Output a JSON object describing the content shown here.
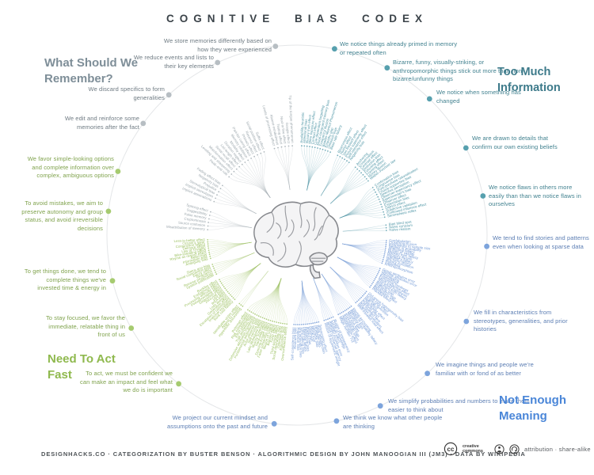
{
  "title": "COGNITIVE BIAS CODEX",
  "center": {
    "illustration": "brain"
  },
  "footer": {
    "credits": "DESIGNHACKS.CO · CATEGORIZATION BY BUSTER BENSON · ALGORITHMIC DESIGN BY JOHN MANOOGIAN III (JM3) · DATA BY WIKIPEDIA",
    "cc_label": "creative commons",
    "license": "attribution · share-alike"
  },
  "quadrants": [
    {
      "id": "what-should-we-remember",
      "heading": "What Should We Remember?",
      "colors": {
        "label": "#9aa5ab",
        "heading": "#7e8e98",
        "callout": "#6e7a82",
        "dot": "#b7bec3"
      },
      "callouts": [
        "We store memories differently based on how they were experienced",
        "We reduce events and lists to their key elements",
        "We discard specifics to form generalities",
        "We edit and reinforce some memories after the fact"
      ],
      "clusters": [
        {
          "biases": [
            "Misattribution of memory",
            "Source confusion",
            "Cryptomnesia",
            "False memory",
            "Suggestibility",
            "Spacing effect"
          ]
        },
        {
          "biases": [
            "Implicit associations",
            "Implicit stereotypes",
            "Stereotypical bias",
            "Prejudice",
            "Negativity bias",
            "Fading affect bias"
          ]
        },
        {
          "biases": [
            "Peak–end rule",
            "Leveling and sharpening",
            "Misinformation effect",
            "Serial recall effect",
            "List-length effect",
            "Duration neglect",
            "Modality effect",
            "Memory inhibition",
            "Part-list cueing effect",
            "Primacy effect",
            "Recency effect",
            "Serial position effect",
            "Suffix effect"
          ]
        },
        {
          "biases": [
            "Levels of processing effect",
            "Absent-mindedness",
            "Testing effect",
            "Next-in-line effect",
            "Google effect",
            "Tip of the tongue phenomenon"
          ]
        }
      ]
    },
    {
      "id": "too-much-information",
      "heading": "Too Much Information",
      "colors": {
        "label": "#4f96a6",
        "heading": "#3d7a8a",
        "callout": "#41818f",
        "dot": "#57a0ae"
      },
      "callouts": [
        "We notice things already primed in memory or repeated often",
        "Bizarre, funny, visually-striking, or anthropomorphic things stick out more than non-bizarre/unfunny things",
        "We notice when something has changed",
        "We are drawn to details that confirm our own existing beliefs",
        "We notice flaws in others more easily than than we notice flaws in ourselves"
      ],
      "clusters": [
        {
          "biases": [
            "Availability heuristic",
            "Attentional bias",
            "Illusory truth effect",
            "Mere exposure effect",
            "Context effect",
            "Cue-dependent forgetting",
            "Mood-congruent memory bias",
            "Frequency illusion",
            "Baader-Meinhof Phenomenon",
            "Empathy gap",
            "Omission bias",
            "Base rate fallacy"
          ]
        },
        {
          "biases": [
            "Bizarreness effect",
            "Humor effect",
            "Von Restorff effect",
            "Picture superiority effect",
            "Self-relevance effect",
            "Negativity bias"
          ]
        },
        {
          "biases": [
            "Anchoring",
            "Conservatism",
            "Contrast effect",
            "Distinction bias",
            "Focusing effect",
            "Framing effect",
            "Money illusion",
            "Weber–Fechner law"
          ]
        },
        {
          "biases": [
            "Confirmation bias",
            "Congruence bias",
            "Post-purchase rationalization",
            "Choice-supportive bias",
            "Selective perception",
            "Observer-expectancy effect",
            "Experimenter's bias",
            "Observer effect",
            "Expectation bias",
            "Ostrich effect",
            "Subjective validation",
            "Continued influence effect",
            "Semmelweis reflex"
          ]
        },
        {
          "biases": [
            "Bias blind spot",
            "Naïve cynicism",
            "Naïve realism"
          ]
        }
      ]
    },
    {
      "id": "not-enough-meaning",
      "heading": "Not Enough Meaning",
      "colors": {
        "label": "#6f97d4",
        "heading": "#4a86d8",
        "callout": "#5b7db3",
        "dot": "#7da4dc"
      },
      "callouts": [
        "We tend to find stories and patterns even when looking at sparse data",
        "We fill in characteristics from stereotypes, generalities, and prior histories",
        "We imagine things and people we're familiar with or fond of as better",
        "We simplify probabilities and numbers to make them easier to think about",
        "We think we know what other people are thinking",
        "We project our current mindset and assumptions onto the past and future"
      ],
      "clusters": [
        {
          "biases": [
            "Confabulation",
            "Clustering illusion",
            "Insensitivity to sample size",
            "Neglect of probability",
            "Anecdotal fallacy",
            "Illusion of validity",
            "Masked man fallacy",
            "Recency illusion",
            "Gambler's fallacy",
            "Hot-hand fallacy",
            "Illusory correlation",
            "Pareidolia",
            "Anthropomorphism"
          ]
        },
        {
          "biases": [
            "Group attribution error",
            "Ultimate attribution error",
            "Stereotyping",
            "Essentialism",
            "Functional fixedness",
            "Moral credential effect",
            "Just-world hypothesis",
            "Argument from fallacy",
            "Authority bias",
            "Automation bias",
            "Bandwagon effect",
            "Placebo effect"
          ]
        },
        {
          "biases": [
            "Out-group homogeneity bias",
            "Cross-race effect",
            "In-group favoritism",
            "Halo effect",
            "Cheerleader effect",
            "Positivity effect",
            "Not invented here",
            "Reactive devaluation",
            "Well-traveled road effect"
          ]
        },
        {
          "biases": [
            "Mental accounting",
            "Appeal to probability fallacy",
            "Normalcy bias",
            "Murphy's law",
            "Zero sum bias",
            "Survivorship bias",
            "Subadditivity effect",
            "Denomination effect",
            "Magic number 7±2"
          ]
        },
        {
          "biases": [
            "Illusion of transparency",
            "Curse of knowledge",
            "Spotlight effect",
            "Extrinsic incentive error",
            "Illusion of external agency",
            "Illusion of asymmetric insight"
          ]
        },
        {
          "biases": [
            "Telescoping effect",
            "Rosy retrospection",
            "Hindsight bias",
            "Outcome bias",
            "Moral luck",
            "Declinism",
            "Impact bias",
            "Pessimism bias",
            "Planning fallacy",
            "Time-saving bias",
            "Pro-innovation bias",
            "Projection bias",
            "Restraint bias",
            "Self-consistency bias"
          ]
        }
      ]
    },
    {
      "id": "need-to-act-fast",
      "heading": "Need To Act Fast",
      "colors": {
        "label": "#9cc161",
        "heading": "#8fb94e",
        "callout": "#7fa24c",
        "dot": "#a6cb70"
      },
      "callouts": [
        "To get things done, we tend to complete things we've invested time & energy in",
        "To stay focused, we favor the immediate, relatable thing in front of us",
        "To act, we must be confident we can make an impact and feel what we do is important",
        "To avoid mistakes, we aim to preserve autonomy and group status, and avoid irreversible decisions",
        "We favor simple-looking options and complete information over complex, ambiguous options"
      ],
      "clusters": [
        {
          "biases": [
            "Overconfidence effect",
            "Egocentric bias",
            "Optimism bias",
            "Social desirability bias",
            "Third-person effect",
            "Forer effect",
            "Barnum effect",
            "Illusion of control",
            "False consensus effect",
            "Dunning-Kruger effect",
            "Hard-easy effect",
            "Illusory superiority",
            "Lake Wobegone effect",
            "Self-serving bias",
            "Actor-observer bias",
            "Fundamental attribution error",
            "Defensive attribution hypothesis",
            "Trait ascription bias",
            "Effort justification",
            "Risk compensation",
            "Peltzman effect"
          ]
        },
        {
          "biases": [
            "Hyperbolic discounting",
            "Appeal to novelty",
            "Identifiable victim effect"
          ]
        },
        {
          "biases": [
            "Sunk cost fallacy",
            "Irrational escalation",
            "Escalation of commitment",
            "Generation effect",
            "Loss aversion",
            "IKEA effect",
            "Unit bias",
            "Zero-risk bias",
            "Disposition effect",
            "Pseudocertainty effect",
            "Processing difficulty effect",
            "Endowment effect",
            "Backfire effect"
          ]
        },
        {
          "biases": [
            "System justification",
            "Reverse psychology",
            "Reactance",
            "Decoy effect",
            "Social comparison bias",
            "Status quo bias"
          ]
        },
        {
          "biases": [
            "Ambiguity bias",
            "Information bias",
            "Belief bias",
            "Rhyme as reason effect",
            "Bike-shedding effect",
            "Law of Triviality",
            "Delmore effect",
            "Conjunction fallacy",
            "Occam's razor",
            "Less-is-better effect"
          ]
        }
      ]
    }
  ]
}
